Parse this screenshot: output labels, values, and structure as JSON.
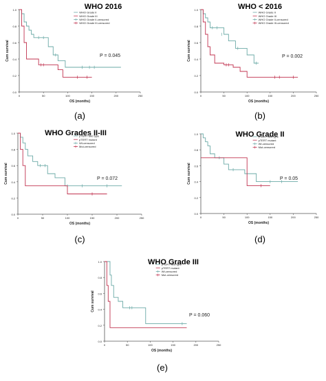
{
  "colors": {
    "series_a": "#6aa9a6",
    "series_b": "#c0314e",
    "axis": "#555555",
    "text": "#222222"
  },
  "chart_data": [
    {
      "id": "a",
      "type": "line",
      "step": true,
      "title": "WHO 2016",
      "panel_label": "(a)",
      "xlabel": "OS (months)",
      "ylabel": "Cum survival",
      "xlim": [
        0,
        250
      ],
      "ylim": [
        0.0,
        1.0
      ],
      "xticks": [
        0,
        50,
        100,
        150,
        200,
        250
      ],
      "yticks": [
        0.0,
        0.2,
        0.4,
        0.6,
        0.8,
        1.0
      ],
      "p_value": "P = 0.045",
      "legend": [
        "WHO Grade II",
        "WHO Grade III",
        "WHO Grade II-censored",
        "WHO Grade III-censored"
      ],
      "series": [
        {
          "name": "WHO Grade II",
          "color": "series_a",
          "x": [
            0,
            5,
            10,
            15,
            20,
            25,
            30,
            60,
            70,
            80,
            95,
            210
          ],
          "y": [
            1.0,
            0.95,
            0.85,
            0.8,
            0.75,
            0.7,
            0.66,
            0.55,
            0.45,
            0.38,
            0.3,
            0.3
          ],
          "censored": [
            [
              40,
              0.66
            ],
            [
              50,
              0.66
            ],
            [
              75,
              0.45
            ],
            [
              130,
              0.3
            ],
            [
              145,
              0.3
            ],
            [
              155,
              0.3
            ]
          ]
        },
        {
          "name": "WHO Grade III",
          "color": "series_b",
          "x": [
            0,
            5,
            10,
            15,
            20,
            40,
            60,
            80,
            90,
            150
          ],
          "y": [
            1.0,
            0.8,
            0.6,
            0.4,
            0.4,
            0.33,
            0.33,
            0.27,
            0.18,
            0.18
          ],
          "censored": [
            [
              45,
              0.33
            ],
            [
              50,
              0.33
            ],
            [
              120,
              0.18
            ],
            [
              140,
              0.18
            ]
          ]
        }
      ]
    },
    {
      "id": "b",
      "type": "line",
      "step": true,
      "title": "WHO < 2016",
      "panel_label": "(b)",
      "xlabel": "OS (months)",
      "ylabel": "Cum survival",
      "xlim": [
        0,
        250
      ],
      "ylim": [
        0.0,
        1.0
      ],
      "xticks": [
        0,
        50,
        100,
        150,
        200,
        250
      ],
      "yticks": [
        0.0,
        0.2,
        0.4,
        0.6,
        0.8,
        1.0
      ],
      "p_value": "P = 0.002",
      "legend": [
        "WHO Grade II",
        "WHO Grade III",
        "WHO Grade II-censored",
        "WHO Grade III-censored"
      ],
      "series": [
        {
          "name": "WHO Grade II",
          "color": "series_a",
          "x": [
            0,
            5,
            10,
            15,
            20,
            30,
            50,
            60,
            75,
            100,
            115,
            125
          ],
          "y": [
            1.0,
            0.95,
            0.9,
            0.85,
            0.78,
            0.78,
            0.7,
            0.62,
            0.53,
            0.45,
            0.35,
            0.35
          ],
          "censored": [
            [
              25,
              0.78
            ],
            [
              35,
              0.78
            ],
            [
              45,
              0.7
            ],
            [
              80,
              0.53
            ],
            [
              120,
              0.35
            ]
          ]
        },
        {
          "name": "WHO Grade III",
          "color": "series_b",
          "x": [
            0,
            5,
            10,
            15,
            20,
            30,
            50,
            70,
            85,
            100,
            210
          ],
          "y": [
            1.0,
            0.85,
            0.7,
            0.55,
            0.45,
            0.35,
            0.33,
            0.3,
            0.25,
            0.18,
            0.18
          ],
          "censored": [
            [
              55,
              0.33
            ],
            [
              60,
              0.33
            ],
            [
              160,
              0.18
            ],
            [
              170,
              0.18
            ],
            [
              200,
              0.18
            ]
          ]
        }
      ]
    },
    {
      "id": "c",
      "type": "line",
      "step": true,
      "title": "WHO Grades II-III",
      "panel_label": "(c)",
      "xlabel": "OS (months)",
      "ylabel": "Cum survival",
      "xlim": [
        0,
        250
      ],
      "ylim": [
        0.0,
        1.0
      ],
      "xticks": [
        0,
        50,
        100,
        150,
        200,
        250
      ],
      "yticks": [
        0.0,
        0.2,
        0.4,
        0.6,
        0.8,
        1.0
      ],
      "p_value": "P = 0.072",
      "legend": [
        "pTERT wild type",
        "pTERT mutant",
        "Wt-censored",
        "Mut-censored"
      ],
      "series": [
        {
          "name": "pTERT wild type",
          "color": "series_a",
          "x": [
            0,
            5,
            10,
            15,
            20,
            30,
            40,
            60,
            75,
            95,
            210
          ],
          "y": [
            1.0,
            0.95,
            0.88,
            0.8,
            0.72,
            0.65,
            0.6,
            0.5,
            0.45,
            0.35,
            0.35
          ],
          "censored": [
            [
              45,
              0.6
            ],
            [
              55,
              0.6
            ],
            [
              100,
              0.35
            ],
            [
              130,
              0.35
            ],
            [
              180,
              0.35
            ]
          ]
        },
        {
          "name": "pTERT mutant",
          "color": "series_b",
          "x": [
            0,
            5,
            10,
            15,
            100,
            180
          ],
          "y": [
            1.0,
            0.8,
            0.6,
            0.35,
            0.25,
            0.25
          ],
          "censored": [
            [
              150,
              0.25
            ]
          ]
        }
      ]
    },
    {
      "id": "d",
      "type": "line",
      "step": true,
      "title": "WHO Grade II",
      "panel_label": "(d)",
      "xlabel": "OS (months)",
      "ylabel": "Cum survival",
      "xlim": [
        0,
        250
      ],
      "ylim": [
        0.0,
        1.0
      ],
      "xticks": [
        0,
        50,
        100,
        150,
        200,
        250
      ],
      "yticks": [
        0.0,
        0.2,
        0.4,
        0.6,
        0.8,
        1.0
      ],
      "p_value": "P = 0.05",
      "legend": [
        "pTERT wild type",
        "pTERT mutant",
        "Wt-censored",
        "Mut-censored"
      ],
      "series": [
        {
          "name": "pTERT wild type",
          "color": "series_a",
          "x": [
            0,
            5,
            10,
            15,
            20,
            30,
            50,
            60,
            95,
            120,
            210
          ],
          "y": [
            1.0,
            0.95,
            0.9,
            0.85,
            0.75,
            0.7,
            0.62,
            0.55,
            0.5,
            0.4,
            0.4
          ],
          "censored": [
            [
              40,
              0.7
            ],
            [
              70,
              0.55
            ],
            [
              150,
              0.4
            ],
            [
              175,
              0.4
            ]
          ]
        },
        {
          "name": "pTERT mutant",
          "color": "series_b",
          "x": [
            0,
            100,
            150
          ],
          "y": [
            0.7,
            0.35,
            0.35
          ],
          "censored": [
            [
              130,
              0.35
            ]
          ]
        }
      ]
    },
    {
      "id": "e",
      "type": "line",
      "step": true,
      "title": "WHO Grade III",
      "panel_label": "(e)",
      "xlabel": "OS (months)",
      "ylabel": "Cum survival",
      "xlim": [
        0,
        250
      ],
      "ylim": [
        0.0,
        1.0
      ],
      "xticks": [
        0,
        50,
        100,
        150,
        200,
        250
      ],
      "yticks": [
        0.0,
        0.2,
        0.4,
        0.6,
        0.8,
        1.0
      ],
      "p_value": "P = 0.060",
      "legend": [
        "pTERT wild type",
        "pTERT mutant",
        "Wt-censored",
        "Mut-censored"
      ],
      "series": [
        {
          "name": "pTERT wild type",
          "color": "series_a",
          "x": [
            0,
            8,
            12,
            15,
            20,
            30,
            40,
            90,
            180
          ],
          "y": [
            1.0,
            1.0,
            0.83,
            0.7,
            0.55,
            0.5,
            0.42,
            0.22,
            0.22
          ],
          "censored": [
            [
              55,
              0.42
            ],
            [
              60,
              0.42
            ],
            [
              170,
              0.22
            ]
          ]
        },
        {
          "name": "pTERT mutant",
          "color": "series_b",
          "x": [
            0,
            5,
            8,
            12,
            180
          ],
          "y": [
            1.0,
            0.7,
            0.5,
            0.17,
            0.17
          ],
          "censored": []
        }
      ]
    }
  ]
}
